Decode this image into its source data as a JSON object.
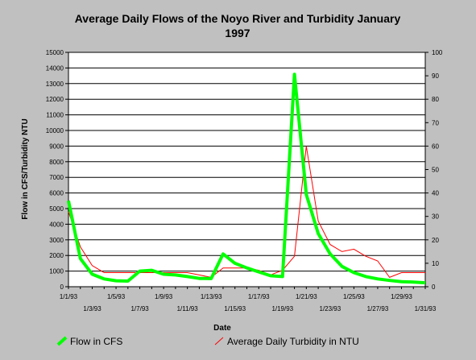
{
  "chart_data": {
    "type": "line",
    "title_line1": "Average Daily Flows of the Noyo River and Turbidity January",
    "title_line2": "1997",
    "xlabel": "Date",
    "ylabel": "Flow in CFS/Turbidity NTU",
    "y_left_lim": [
      0,
      15000
    ],
    "y_left_ticks": [
      "0",
      "1000",
      "2000",
      "3000",
      "4000",
      "5000",
      "6000",
      "7000",
      "8000",
      "9000",
      "10000",
      "11000",
      "12000",
      "13000",
      "14000",
      "15000"
    ],
    "y_right_lim": [
      0,
      100
    ],
    "y_right_ticks": [
      "0",
      "10",
      "20",
      "30",
      "40",
      "50",
      "60",
      "70",
      "80",
      "90",
      "100"
    ],
    "x": [
      1,
      2,
      3,
      4,
      5,
      6,
      7,
      8,
      9,
      10,
      11,
      12,
      13,
      14,
      15,
      16,
      17,
      18,
      19,
      20,
      21,
      22,
      23,
      24,
      25,
      26,
      27,
      28,
      29,
      30,
      31
    ],
    "x_tick_labels_top": [
      "1/1/93",
      "1/5/93",
      "1/9/93",
      "1/13/93",
      "1/17/93",
      "1/21/93",
      "1/25/93",
      "1/29/93"
    ],
    "x_tick_labels_bottom": [
      "1/3/93",
      "1/7/93",
      "1/11/93",
      "1/15/93",
      "1/19/93",
      "1/23/93",
      "1/27/93",
      "1/31/93"
    ],
    "grid": "horizontal",
    "legend_position": "bottom",
    "series": [
      {
        "name": "Flow in CFS",
        "axis": "left",
        "color": "#00ff00",
        "values": [
          5500,
          1800,
          800,
          500,
          380,
          360,
          1000,
          1050,
          800,
          750,
          650,
          530,
          520,
          2100,
          1500,
          1200,
          950,
          700,
          650,
          13600,
          5900,
          3400,
          2100,
          1300,
          900,
          650,
          500,
          400,
          320,
          300,
          250
        ]
      },
      {
        "name": "Average Daily Turbidity in NTU",
        "axis": "right",
        "color": "#ff0000",
        "values": [
          32,
          17,
          9,
          6,
          6,
          6,
          6,
          6,
          6,
          6,
          6,
          5,
          4,
          8,
          8,
          8,
          7,
          5,
          7,
          13,
          60,
          28,
          18,
          15,
          16,
          13,
          11,
          4,
          6,
          6,
          6
        ]
      }
    ]
  }
}
